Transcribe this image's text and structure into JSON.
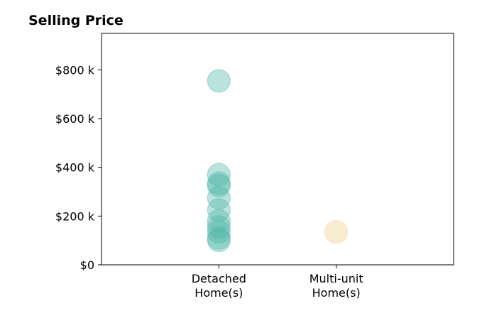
{
  "chart_data": {
    "type": "scatter",
    "title": "Selling Price",
    "xlabel": "",
    "ylabel": "",
    "categories": [
      "Detached\nHome(s)",
      "Multi-unit\nHome(s)"
    ],
    "xlim": [
      -1,
      2
    ],
    "ylim": [
      0,
      950000
    ],
    "yticks": [
      0,
      200000,
      400000,
      600000,
      800000
    ],
    "ytick_labels": [
      "$0",
      "$200 k",
      "$400 k",
      "$600 k",
      "$800 k"
    ],
    "grid": false,
    "series": [
      {
        "category": "Detached\nHome(s)",
        "color": "#4db6a6",
        "opacity": 0.38,
        "values": [
          755000,
          370000,
          335000,
          325000,
          275000,
          225000,
          180000,
          155000,
          135000,
          110000,
          100000
        ]
      },
      {
        "category": "Multi-unit\nHome(s)",
        "color": "#f2deb0",
        "opacity": 0.6,
        "values": [
          135000
        ]
      }
    ]
  }
}
